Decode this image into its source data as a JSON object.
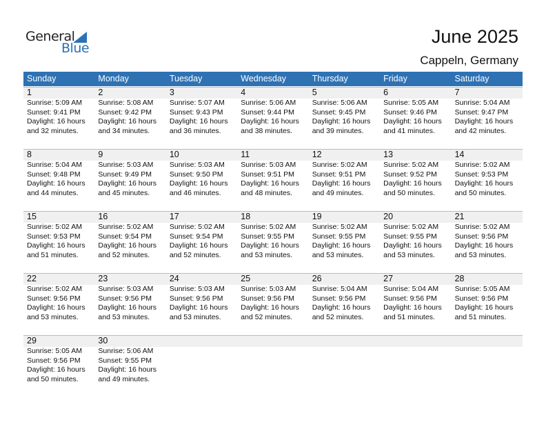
{
  "logo": {
    "general": "General",
    "blue": "Blue"
  },
  "title": "June 2025",
  "location": "Cappeln, Germany",
  "colors": {
    "header": "#2e72b4",
    "datebar": "#f0f0f0",
    "logo_blue": "#2a72b8"
  },
  "weekdays": [
    "Sunday",
    "Monday",
    "Tuesday",
    "Wednesday",
    "Thursday",
    "Friday",
    "Saturday"
  ],
  "weeks": [
    [
      {
        "day": "1",
        "sunrise": "Sunrise: 5:09 AM",
        "sunset": "Sunset: 9:41 PM",
        "daylight": "Daylight: 16 hours",
        "minutes": "and 32 minutes."
      },
      {
        "day": "2",
        "sunrise": "Sunrise: 5:08 AM",
        "sunset": "Sunset: 9:42 PM",
        "daylight": "Daylight: 16 hours",
        "minutes": "and 34 minutes."
      },
      {
        "day": "3",
        "sunrise": "Sunrise: 5:07 AM",
        "sunset": "Sunset: 9:43 PM",
        "daylight": "Daylight: 16 hours",
        "minutes": "and 36 minutes."
      },
      {
        "day": "4",
        "sunrise": "Sunrise: 5:06 AM",
        "sunset": "Sunset: 9:44 PM",
        "daylight": "Daylight: 16 hours",
        "minutes": "and 38 minutes."
      },
      {
        "day": "5",
        "sunrise": "Sunrise: 5:06 AM",
        "sunset": "Sunset: 9:45 PM",
        "daylight": "Daylight: 16 hours",
        "minutes": "and 39 minutes."
      },
      {
        "day": "6",
        "sunrise": "Sunrise: 5:05 AM",
        "sunset": "Sunset: 9:46 PM",
        "daylight": "Daylight: 16 hours",
        "minutes": "and 41 minutes."
      },
      {
        "day": "7",
        "sunrise": "Sunrise: 5:04 AM",
        "sunset": "Sunset: 9:47 PM",
        "daylight": "Daylight: 16 hours",
        "minutes": "and 42 minutes."
      }
    ],
    [
      {
        "day": "8",
        "sunrise": "Sunrise: 5:04 AM",
        "sunset": "Sunset: 9:48 PM",
        "daylight": "Daylight: 16 hours",
        "minutes": "and 44 minutes."
      },
      {
        "day": "9",
        "sunrise": "Sunrise: 5:03 AM",
        "sunset": "Sunset: 9:49 PM",
        "daylight": "Daylight: 16 hours",
        "minutes": "and 45 minutes."
      },
      {
        "day": "10",
        "sunrise": "Sunrise: 5:03 AM",
        "sunset": "Sunset: 9:50 PM",
        "daylight": "Daylight: 16 hours",
        "minutes": "and 46 minutes."
      },
      {
        "day": "11",
        "sunrise": "Sunrise: 5:03 AM",
        "sunset": "Sunset: 9:51 PM",
        "daylight": "Daylight: 16 hours",
        "minutes": "and 48 minutes."
      },
      {
        "day": "12",
        "sunrise": "Sunrise: 5:02 AM",
        "sunset": "Sunset: 9:51 PM",
        "daylight": "Daylight: 16 hours",
        "minutes": "and 49 minutes."
      },
      {
        "day": "13",
        "sunrise": "Sunrise: 5:02 AM",
        "sunset": "Sunset: 9:52 PM",
        "daylight": "Daylight: 16 hours",
        "minutes": "and 50 minutes."
      },
      {
        "day": "14",
        "sunrise": "Sunrise: 5:02 AM",
        "sunset": "Sunset: 9:53 PM",
        "daylight": "Daylight: 16 hours",
        "minutes": "and 50 minutes."
      }
    ],
    [
      {
        "day": "15",
        "sunrise": "Sunrise: 5:02 AM",
        "sunset": "Sunset: 9:53 PM",
        "daylight": "Daylight: 16 hours",
        "minutes": "and 51 minutes."
      },
      {
        "day": "16",
        "sunrise": "Sunrise: 5:02 AM",
        "sunset": "Sunset: 9:54 PM",
        "daylight": "Daylight: 16 hours",
        "minutes": "and 52 minutes."
      },
      {
        "day": "17",
        "sunrise": "Sunrise: 5:02 AM",
        "sunset": "Sunset: 9:54 PM",
        "daylight": "Daylight: 16 hours",
        "minutes": "and 52 minutes."
      },
      {
        "day": "18",
        "sunrise": "Sunrise: 5:02 AM",
        "sunset": "Sunset: 9:55 PM",
        "daylight": "Daylight: 16 hours",
        "minutes": "and 53 minutes."
      },
      {
        "day": "19",
        "sunrise": "Sunrise: 5:02 AM",
        "sunset": "Sunset: 9:55 PM",
        "daylight": "Daylight: 16 hours",
        "minutes": "and 53 minutes."
      },
      {
        "day": "20",
        "sunrise": "Sunrise: 5:02 AM",
        "sunset": "Sunset: 9:55 PM",
        "daylight": "Daylight: 16 hours",
        "minutes": "and 53 minutes."
      },
      {
        "day": "21",
        "sunrise": "Sunrise: 5:02 AM",
        "sunset": "Sunset: 9:56 PM",
        "daylight": "Daylight: 16 hours",
        "minutes": "and 53 minutes."
      }
    ],
    [
      {
        "day": "22",
        "sunrise": "Sunrise: 5:02 AM",
        "sunset": "Sunset: 9:56 PM",
        "daylight": "Daylight: 16 hours",
        "minutes": "and 53 minutes."
      },
      {
        "day": "23",
        "sunrise": "Sunrise: 5:03 AM",
        "sunset": "Sunset: 9:56 PM",
        "daylight": "Daylight: 16 hours",
        "minutes": "and 53 minutes."
      },
      {
        "day": "24",
        "sunrise": "Sunrise: 5:03 AM",
        "sunset": "Sunset: 9:56 PM",
        "daylight": "Daylight: 16 hours",
        "minutes": "and 53 minutes."
      },
      {
        "day": "25",
        "sunrise": "Sunrise: 5:03 AM",
        "sunset": "Sunset: 9:56 PM",
        "daylight": "Daylight: 16 hours",
        "minutes": "and 52 minutes."
      },
      {
        "day": "26",
        "sunrise": "Sunrise: 5:04 AM",
        "sunset": "Sunset: 9:56 PM",
        "daylight": "Daylight: 16 hours",
        "minutes": "and 52 minutes."
      },
      {
        "day": "27",
        "sunrise": "Sunrise: 5:04 AM",
        "sunset": "Sunset: 9:56 PM",
        "daylight": "Daylight: 16 hours",
        "minutes": "and 51 minutes."
      },
      {
        "day": "28",
        "sunrise": "Sunrise: 5:05 AM",
        "sunset": "Sunset: 9:56 PM",
        "daylight": "Daylight: 16 hours",
        "minutes": "and 51 minutes."
      }
    ],
    [
      {
        "day": "29",
        "sunrise": "Sunrise: 5:05 AM",
        "sunset": "Sunset: 9:56 PM",
        "daylight": "Daylight: 16 hours",
        "minutes": "and 50 minutes."
      },
      {
        "day": "30",
        "sunrise": "Sunrise: 5:06 AM",
        "sunset": "Sunset: 9:55 PM",
        "daylight": "Daylight: 16 hours",
        "minutes": "and 49 minutes."
      }
    ]
  ]
}
